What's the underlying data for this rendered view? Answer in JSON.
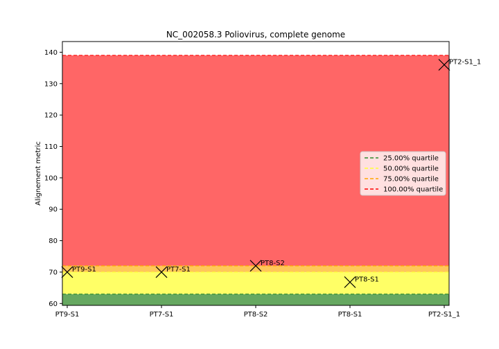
{
  "chart_data": {
    "type": "scatter",
    "title": "NC_002058.3 Poliovirus, complete genome",
    "xlabel": "",
    "ylabel": "Alignement metric",
    "ylim": [
      59.4,
      143.4
    ],
    "yticks": [
      60,
      70,
      80,
      90,
      100,
      110,
      120,
      130,
      140
    ],
    "categories": [
      "PT9-S1",
      "PT7-S1",
      "PT8-S2",
      "PT8-S1",
      "PT2-S1_1"
    ],
    "points": [
      {
        "label": "PT9-S1",
        "x": 0,
        "y": 70.0
      },
      {
        "label": "PT7-S1",
        "x": 1,
        "y": 70.0
      },
      {
        "label": "PT8-S2",
        "x": 2,
        "y": 72.0
      },
      {
        "label": "PT8-S1",
        "x": 3,
        "y": 66.8
      },
      {
        "label": "PT2-S1_1",
        "x": 4,
        "y": 136.0
      }
    ],
    "quartiles": [
      {
        "name": "25.00% quartile",
        "value": 63.0,
        "line_color": "#2e8b2e",
        "fill_color": "#66a861"
      },
      {
        "name": "50.00% quartile",
        "value": 70.0,
        "line_color": "#ffff33",
        "fill_color": "#ffff66"
      },
      {
        "name": "75.00% quartile",
        "value": 72.0,
        "line_color": "#ffa500",
        "fill_color": "#ffc75a"
      },
      {
        "name": "100.00% quartile",
        "value": 139.0,
        "line_color": "#ff0000",
        "fill_color": "#ff6666"
      }
    ],
    "legend_position": "center-right",
    "grid": false
  }
}
